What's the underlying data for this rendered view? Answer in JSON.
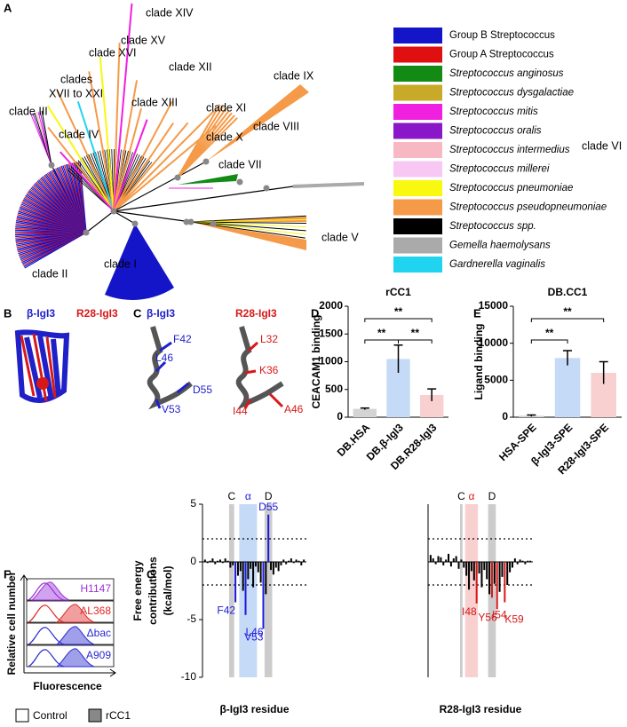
{
  "panel_labels": [
    "A",
    "B",
    "C",
    "D",
    "E",
    "F",
    "G"
  ],
  "tree": {
    "clade_labels": [
      "clade XIV",
      "clade XV",
      "clade XVI",
      "clades",
      "XVII to XXI",
      "clade XII",
      "clade IX",
      "clade XIII",
      "clade XI",
      "clade III",
      "clade VIII",
      "clade IV",
      "clade X",
      "clade VI",
      "clade VII",
      "clade V",
      "clade II",
      "clade I"
    ],
    "legend": [
      {
        "label": "Group B Streptococcus",
        "color": "#1414c8"
      },
      {
        "label": "Group A Streptococcus",
        "color": "#e01010"
      },
      {
        "label": "Streptococcus anginosus",
        "color": "#138a13"
      },
      {
        "label": "Streptococcus dysgalactiae",
        "color": "#c8aa28"
      },
      {
        "label": "Streptococcus mitis",
        "color": "#f020e0"
      },
      {
        "label": "Streptococcus oralis",
        "color": "#8a18c8"
      },
      {
        "label": "Streptococcus intermedius",
        "color": "#f7b8c4"
      },
      {
        "label": "Streptococcus millerei",
        "color": "#f8c8f4"
      },
      {
        "label": "Streptococcus pneumoniae",
        "color": "#f8f810"
      },
      {
        "label": "Streptococcus pseudopneumoniae",
        "color": "#f59a48"
      },
      {
        "label": "Streptococcus spp.",
        "color": "#000000"
      },
      {
        "label": "Gemella haemolysans",
        "color": "#aaaaaa"
      },
      {
        "label": "Gardnerella vaginalis",
        "color": "#20d4f0"
      }
    ]
  },
  "structure_b": {
    "labels": [
      "β-IgI3",
      "R28-IgI3"
    ]
  },
  "structure_c": {
    "titles": [
      "β-IgI3",
      "R28-IgI3"
    ],
    "residues_left": [
      "F42",
      "L46",
      "D55",
      "V53"
    ],
    "residues_right": [
      "L32",
      "K36",
      "A46",
      "I44"
    ]
  },
  "flow": {
    "ylabel": "Relative cell number",
    "xlabel": "Fluorescence",
    "strains": [
      {
        "name": "H1147",
        "color": "#9a30d8"
      },
      {
        "name": "AL368",
        "color": "#e02828"
      },
      {
        "name": "Δbac",
        "color": "#2a2ad0"
      },
      {
        "name": "A909",
        "color": "#2a2ad0"
      }
    ],
    "legend": [
      "Control",
      "rCC1"
    ]
  },
  "chart_data": [
    {
      "type": "bar",
      "title": "rCC1",
      "ylabel": "CEACAM1 binding",
      "categories": [
        "DB.HSA",
        "DB.β-IgI3",
        "DB.R28-IgI3"
      ],
      "values": [
        150,
        1050,
        400
      ],
      "errors": [
        15,
        250,
        110
      ],
      "colors": [
        "#d4d4d4",
        "#c5daf6",
        "#f8d0d0"
      ],
      "ylim": [
        0,
        2000
      ],
      "yticks": [
        0,
        500,
        1000,
        1500,
        2000
      ],
      "significance": [
        {
          "label": "**",
          "between": [
            0,
            2
          ]
        },
        {
          "label": "**",
          "between": [
            0,
            1
          ]
        },
        {
          "label": "**",
          "between": [
            1,
            2
          ]
        }
      ]
    },
    {
      "type": "bar",
      "title": "DB.CC1",
      "ylabel": "Ligand binding",
      "categories": [
        "HSA-SPE",
        "β-IgI3-SPE",
        "R28-IgI3-SPE"
      ],
      "values": [
        200,
        8000,
        6000
      ],
      "errors": [
        100,
        1000,
        1500
      ],
      "colors": [
        "#d4d4d4",
        "#c5daf6",
        "#f8d0d0"
      ],
      "ylim": [
        0,
        15000
      ],
      "yticks": [
        0,
        5000,
        10000,
        15000
      ],
      "significance": [
        {
          "label": "**",
          "between": [
            0,
            2
          ]
        },
        {
          "label": "**",
          "between": [
            0,
            1
          ]
        }
      ]
    },
    {
      "type": "residues",
      "xlabel": "β-IgI3 residue",
      "ylabel": [
        "Free energy",
        "contributions",
        "(kcal/mol)"
      ],
      "x": [
        30,
        31,
        32,
        33,
        34,
        35,
        36,
        37,
        38,
        39,
        40,
        41,
        42,
        43,
        44,
        45,
        46,
        47,
        48,
        49,
        50,
        51,
        52,
        53,
        54,
        55,
        56,
        57,
        58,
        59,
        60,
        61,
        62,
        63,
        64,
        65,
        66,
        67,
        68,
        69
      ],
      "values": [
        0.2,
        -0.1,
        0.1,
        0.3,
        -0.2,
        0.1,
        0.2,
        -0.1,
        0.3,
        0.1,
        -0.5,
        -0.3,
        -3.5,
        -1.2,
        -0.8,
        -2.5,
        -4.6,
        -1.5,
        -0.6,
        -2.2,
        -0.4,
        -0.9,
        -1.8,
        -5.8,
        -2.8,
        4.1,
        -0.7,
        -1.1,
        -0.5,
        -0.8,
        -0.3,
        0.2,
        -0.2,
        0.1,
        0.3,
        -0.1,
        0.2,
        0.1,
        -0.3,
        0.2
      ],
      "color": "#000000",
      "ylim": [
        -10,
        5
      ],
      "yticks": [
        -10,
        -5,
        0,
        5
      ],
      "reference_lines": [
        2,
        -2
      ],
      "regions": [
        {
          "label": "C",
          "range": [
            40,
            41
          ],
          "color": "#cccccc"
        },
        {
          "label": "α",
          "range": [
            44,
            50
          ],
          "color": "#c5daf6"
        },
        {
          "label": "D",
          "range": [
            54,
            56
          ],
          "color": "#cccccc"
        }
      ],
      "annotations": [
        {
          "text": "F42",
          "x": 42,
          "color": "#1a1adb"
        },
        {
          "text": "L46",
          "x": 46,
          "color": "#1a1adb"
        },
        {
          "text": "V53",
          "x": 53,
          "color": "#1a1adb"
        },
        {
          "text": "D55",
          "x": 55,
          "color": "#1a1adb"
        }
      ]
    },
    {
      "type": "residues",
      "xlabel": "R28-IgI3 residue",
      "x": [
        30,
        31,
        32,
        33,
        34,
        35,
        36,
        37,
        38,
        39,
        40,
        41,
        42,
        43,
        44,
        45,
        46,
        47,
        48,
        49,
        50,
        51,
        52,
        53,
        54,
        55,
        56,
        57,
        58,
        59,
        60,
        61,
        62,
        63,
        64,
        65,
        66,
        67,
        68,
        69
      ],
      "values": [
        0.6,
        0.3,
        -0.2,
        0.5,
        0.4,
        -0.3,
        0.2,
        0.7,
        -0.4,
        0.3,
        0.5,
        -0.6,
        0.2,
        -0.5,
        -1.2,
        -2.4,
        -0.8,
        -1.6,
        -3.6,
        -1.0,
        -2.2,
        -0.7,
        -1.5,
        -2.8,
        -3.1,
        -1.9,
        -4.1,
        -2.6,
        -1.3,
        -3.5,
        -2.0,
        -0.9,
        -0.5,
        0.3,
        -0.2,
        0.2,
        0.1,
        -0.2,
        0.1,
        0.1
      ],
      "color": "#000000",
      "ylim": [
        -10,
        5
      ],
      "reference_lines": [
        2,
        -2
      ],
      "regions": [
        {
          "label": "C",
          "range": [
            42,
            42
          ],
          "color": "#cccccc"
        },
        {
          "label": "α",
          "range": [
            44,
            48
          ],
          "color": "#f8d0d0"
        },
        {
          "label": "D",
          "range": [
            53,
            55
          ],
          "color": "#cccccc"
        }
      ],
      "annotations": [
        {
          "text": "I48",
          "x": 48,
          "color": "#d81818"
        },
        {
          "text": "I54",
          "x": 54,
          "color": "#d81818"
        },
        {
          "text": "Y56",
          "x": 56,
          "color": "#d81818"
        },
        {
          "text": "K59",
          "x": 59,
          "color": "#d81818"
        }
      ]
    }
  ]
}
